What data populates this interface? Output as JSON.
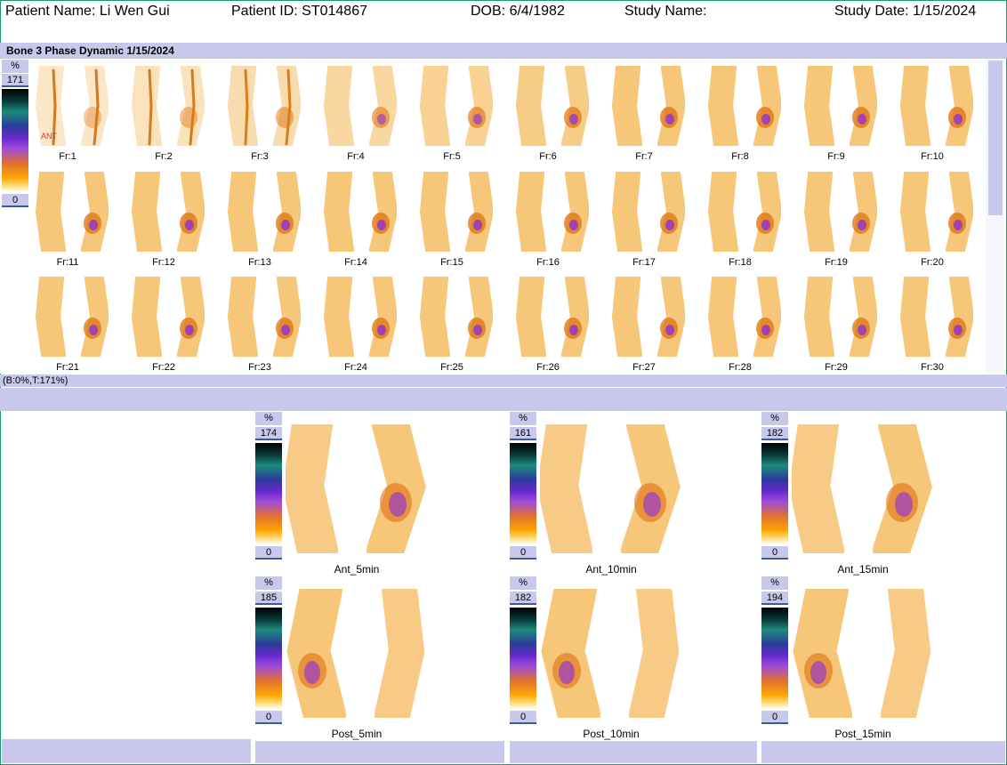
{
  "header": {
    "patient_name": "Patient Name: Li Wen Gui",
    "patient_id": "Patient ID: ST014867",
    "dob": "DOB: 6/4/1982",
    "study_name": "Study Name:",
    "study_date": "Study Date: 1/15/2024"
  },
  "dynamic_panel": {
    "title": "Bone 3 Phase Dynamic 1/15/2024",
    "scale": {
      "unit": "%",
      "max": "171",
      "min": "0"
    },
    "orientation_marker": "ANT",
    "frames": [
      "Fr:1",
      "Fr:2",
      "Fr:3",
      "Fr:4",
      "Fr:5",
      "Fr:6",
      "Fr:7",
      "Fr:8",
      "Fr:9",
      "Fr:10",
      "Fr:11",
      "Fr:12",
      "Fr:13",
      "Fr:14",
      "Fr:15",
      "Fr:16",
      "Fr:17",
      "Fr:18",
      "Fr:19",
      "Fr:20",
      "Fr:21",
      "Fr:22",
      "Fr:23",
      "Fr:24",
      "Fr:25",
      "Fr:26",
      "Fr:27",
      "Fr:28",
      "Fr:29",
      "Fr:30"
    ],
    "status": "(B:0%,T:171%)"
  },
  "static_images": [
    {
      "label": "Ant_5min",
      "unit": "%",
      "max": "174",
      "min": "0",
      "view": "ant"
    },
    {
      "label": "Ant_10min",
      "unit": "%",
      "max": "161",
      "min": "0",
      "view": "ant"
    },
    {
      "label": "Ant_15min",
      "unit": "%",
      "max": "182",
      "min": "0",
      "view": "ant"
    },
    {
      "label": "Post_5min",
      "unit": "%",
      "max": "185",
      "min": "0",
      "view": "post"
    },
    {
      "label": "Post_10min",
      "unit": "%",
      "max": "182",
      "min": "0",
      "view": "post"
    },
    {
      "label": "Post_15min",
      "unit": "%",
      "max": "194",
      "min": "0",
      "view": "post"
    }
  ],
  "colors": {
    "accent_bar": "#c8c8ec",
    "uptake": "#f0a020",
    "hotspot": "#8a2be2"
  }
}
